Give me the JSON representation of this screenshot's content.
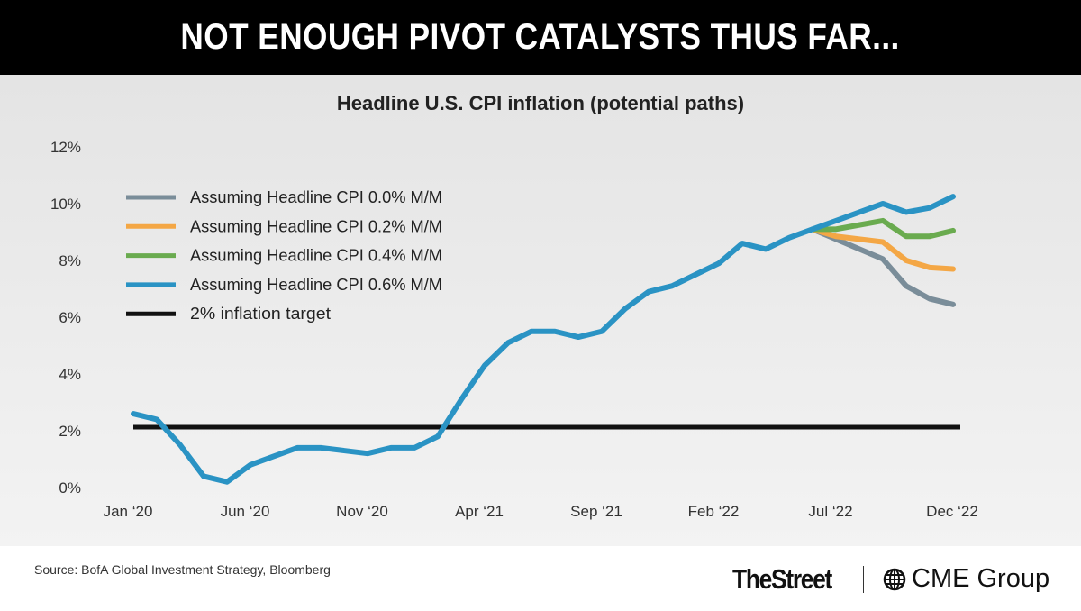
{
  "banner": {
    "title": "NOT ENOUGH PIVOT CATALYSTS THUS FAR..."
  },
  "footer": {
    "source": "Source: BofA Global Investment Strategy, Bloomberg",
    "logo_thestreet": "TheStreet",
    "logo_cme": "CME Group"
  },
  "chart_data": {
    "type": "line",
    "title": "Headline U.S. CPI inflation (potential paths)",
    "xlabel": "",
    "ylabel": "",
    "ylim": [
      0,
      12
    ],
    "yticks": [
      "0%",
      "2%",
      "4%",
      "6%",
      "8%",
      "10%",
      "12%"
    ],
    "xticks": [
      "Jan ‘20",
      "Jun ‘20",
      "Nov ‘20",
      "Apr ‘21",
      "Sep ‘21",
      "Feb ‘22",
      "Jul ‘22",
      "Dec ‘22"
    ],
    "x_start": "Jan 2020",
    "x_end": "Dec 2022",
    "grid": false,
    "legend_position": "top-left",
    "history": [
      2.6,
      2.4,
      1.5,
      0.4,
      0.2,
      0.8,
      1.1,
      1.4,
      1.4,
      1.3,
      1.2,
      1.4,
      1.4,
      1.8,
      3.1,
      4.3,
      5.1,
      5.5,
      5.5,
      5.3,
      5.5,
      6.3,
      6.9,
      7.1,
      7.5,
      7.9,
      8.6,
      8.4,
      8.8,
      9.1
    ],
    "series": [
      {
        "name": "Assuming Headline CPI 0.0% M/M",
        "color": "#7a8d99",
        "projection": [
          8.75,
          8.4,
          8.05,
          7.1,
          6.65,
          6.45
        ]
      },
      {
        "name": "Assuming Headline CPI 0.2% M/M",
        "color": "#f4a745",
        "projection": [
          8.85,
          8.75,
          8.65,
          8.0,
          7.75,
          7.7
        ]
      },
      {
        "name": "Assuming Headline CPI 0.4% M/M",
        "color": "#6aab4f",
        "projection": [
          9.1,
          9.25,
          9.4,
          8.85,
          8.85,
          9.05
        ]
      },
      {
        "name": "Assuming Headline CPI 0.6% M/M",
        "color": "#2a93c4",
        "projection": [
          9.4,
          9.7,
          10.0,
          9.7,
          9.85,
          10.25
        ]
      }
    ],
    "target": {
      "name": "2% inflation target",
      "value": 2,
      "color": "#111111"
    }
  }
}
